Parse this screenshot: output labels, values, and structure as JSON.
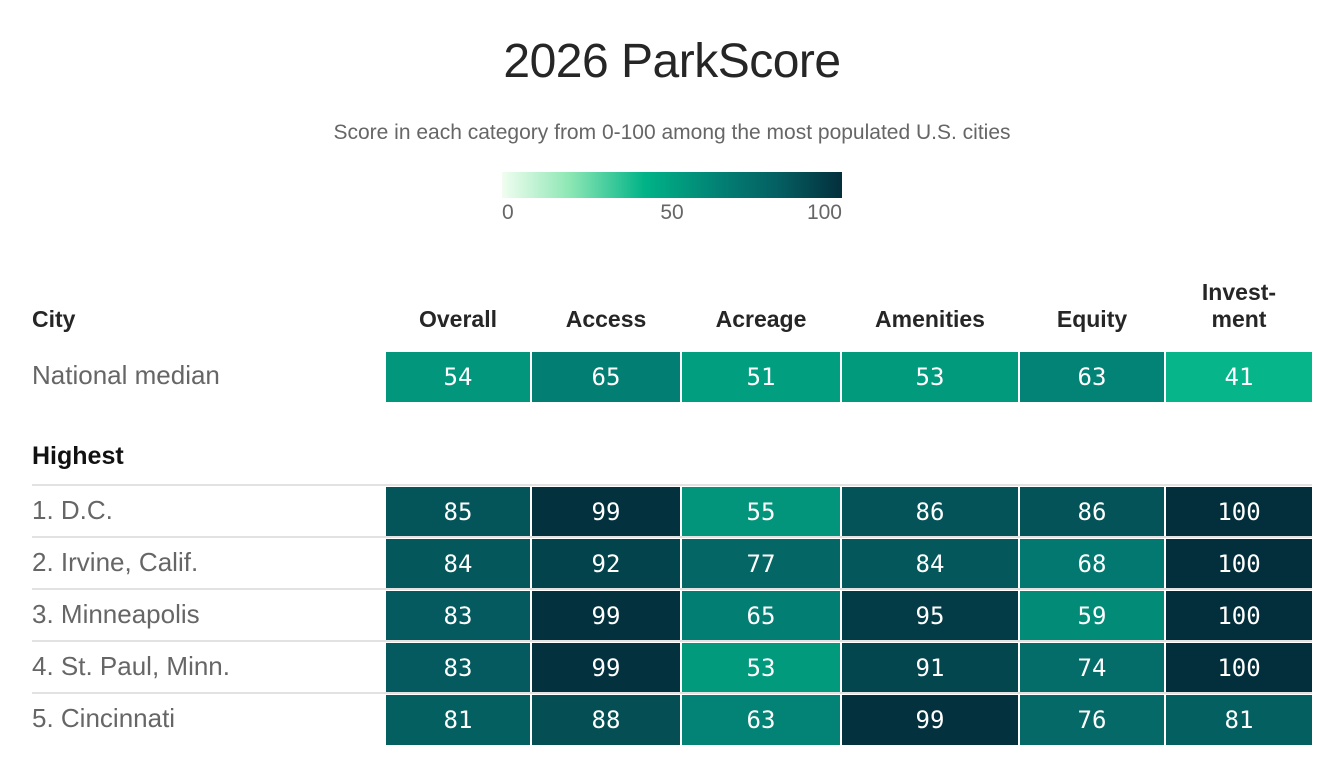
{
  "title": "2026 ParkScore",
  "subtitle": "Score in each category from 0-100 among the most populated U.S. cities",
  "legend": {
    "ticks": [
      "0",
      "50",
      "100"
    ]
  },
  "colors": {
    "scale": [
      "#f1fdf0",
      "#8ce7b4",
      "#00b387",
      "#037e73",
      "#045d60",
      "#032f3c"
    ],
    "text": "#ffffff"
  },
  "chart_data": {
    "type": "table",
    "title": "2026 ParkScore",
    "subtitle": "Score in each category from 0-100 among the most populated U.S. cities",
    "color_scale": {
      "min": 0,
      "max": 100
    },
    "columns": {
      "city": "City",
      "categories": [
        "Overall",
        "Access",
        "Acreage",
        "Amenities",
        "Equity",
        "Invest-\nment"
      ]
    },
    "median": {
      "label": "National median",
      "values": [
        54,
        65,
        51,
        53,
        63,
        41
      ]
    },
    "section": "Highest",
    "rows": [
      {
        "label": "1. D.C.",
        "values": [
          85,
          99,
          55,
          86,
          86,
          100
        ]
      },
      {
        "label": "2. Irvine, Calif.",
        "values": [
          84,
          92,
          77,
          84,
          68,
          100
        ]
      },
      {
        "label": "3. Minneapolis",
        "values": [
          83,
          99,
          65,
          95,
          59,
          100
        ]
      },
      {
        "label": "4. St. Paul, Minn.",
        "values": [
          83,
          99,
          53,
          91,
          74,
          100
        ]
      },
      {
        "label": "5. Cincinnati",
        "values": [
          81,
          88,
          63,
          99,
          76,
          81
        ]
      }
    ]
  }
}
